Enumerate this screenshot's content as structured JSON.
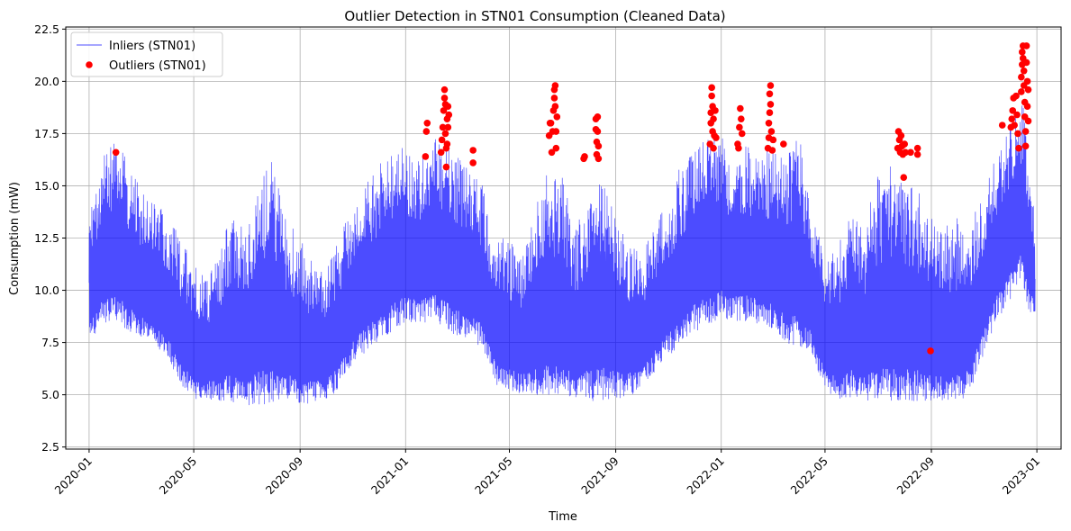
{
  "chart_data": {
    "type": "line",
    "title": "Outlier Detection in STN01 Consumption (Cleaned Data)",
    "xlabel": "Time",
    "ylabel": "Consumption (mW)",
    "xlim": [
      "2019-12-05",
      "2023-01-29"
    ],
    "ylim": [
      2.4,
      22.6
    ],
    "x_ticks": [
      "2020-01",
      "2020-05",
      "2020-09",
      "2021-01",
      "2021-05",
      "2021-09",
      "2022-01",
      "2022-05",
      "2022-09",
      "2023-01"
    ],
    "y_ticks": [
      "2.5",
      "5.0",
      "7.5",
      "10.0",
      "12.5",
      "15.0",
      "17.5",
      "20.0",
      "22.5"
    ],
    "grid": true,
    "legend_position": "top-left",
    "series": [
      {
        "name": "Inliers (STN01)",
        "kind": "line",
        "color": "#0000ff",
        "envelope_by_day": [
          [
            "2020-01-01",
            7.6,
            13.6
          ],
          [
            "2020-01-15",
            8.2,
            16.3
          ],
          [
            "2020-02-01",
            8.5,
            17.5
          ],
          [
            "2020-02-15",
            8.0,
            16.0
          ],
          [
            "2020-03-01",
            7.8,
            15.0
          ],
          [
            "2020-03-15",
            7.2,
            14.2
          ],
          [
            "2020-04-01",
            6.8,
            13.8
          ],
          [
            "2020-04-15",
            5.5,
            12.5
          ],
          [
            "2020-05-01",
            4.8,
            11.5
          ],
          [
            "2020-05-15",
            4.8,
            10.5
          ],
          [
            "2020-06-01",
            4.7,
            12.0
          ],
          [
            "2020-06-15",
            4.6,
            14.0
          ],
          [
            "2020-07-01",
            4.5,
            12.5
          ],
          [
            "2020-07-15",
            4.5,
            15.5
          ],
          [
            "2020-08-01",
            4.6,
            16.5
          ],
          [
            "2020-08-15",
            4.7,
            13.5
          ],
          [
            "2020-09-01",
            4.5,
            12.5
          ],
          [
            "2020-09-15",
            4.6,
            11.5
          ],
          [
            "2020-10-01",
            4.8,
            11.0
          ],
          [
            "2020-10-15",
            5.2,
            12.5
          ],
          [
            "2020-11-01",
            6.5,
            14.0
          ],
          [
            "2020-11-15",
            7.0,
            15.0
          ],
          [
            "2020-12-01",
            7.6,
            16.0
          ],
          [
            "2020-12-15",
            8.0,
            16.5
          ],
          [
            "2021-01-01",
            8.5,
            17.0
          ],
          [
            "2021-01-15",
            8.3,
            16.2
          ],
          [
            "2021-02-01",
            8.5,
            17.5
          ],
          [
            "2021-02-15",
            8.2,
            17.0
          ],
          [
            "2021-03-01",
            7.8,
            16.5
          ],
          [
            "2021-03-15",
            7.6,
            16.0
          ],
          [
            "2021-04-01",
            7.2,
            15.0
          ],
          [
            "2021-04-15",
            5.5,
            12.5
          ],
          [
            "2021-05-01",
            5.2,
            12.5
          ],
          [
            "2021-05-15",
            5.0,
            11.5
          ],
          [
            "2021-06-01",
            5.0,
            14.0
          ],
          [
            "2021-06-15",
            4.9,
            16.0
          ],
          [
            "2021-07-01",
            4.9,
            15.5
          ],
          [
            "2021-07-15",
            4.8,
            13.0
          ],
          [
            "2021-08-01",
            4.7,
            14.5
          ],
          [
            "2021-08-15",
            4.7,
            15.5
          ],
          [
            "2021-09-01",
            4.8,
            13.5
          ],
          [
            "2021-09-15",
            4.9,
            12.5
          ],
          [
            "2021-10-01",
            5.2,
            12.0
          ],
          [
            "2021-10-15",
            6.0,
            13.0
          ],
          [
            "2021-11-01",
            6.8,
            14.5
          ],
          [
            "2021-11-15",
            7.3,
            16.0
          ],
          [
            "2021-12-01",
            8.0,
            17.0
          ],
          [
            "2021-12-15",
            8.3,
            17.3
          ],
          [
            "2022-01-01",
            8.7,
            17.5
          ],
          [
            "2022-01-15",
            8.5,
            16.5
          ],
          [
            "2022-02-01",
            8.5,
            17.0
          ],
          [
            "2022-02-15",
            8.3,
            16.5
          ],
          [
            "2022-03-01",
            8.0,
            17.0
          ],
          [
            "2022-03-15",
            7.5,
            16.5
          ],
          [
            "2022-04-01",
            7.3,
            17.8
          ],
          [
            "2022-04-15",
            7.0,
            14.0
          ],
          [
            "2022-05-01",
            5.2,
            11.5
          ],
          [
            "2022-05-15",
            4.8,
            12.0
          ],
          [
            "2022-06-01",
            4.8,
            14.0
          ],
          [
            "2022-06-15",
            4.7,
            13.0
          ],
          [
            "2022-07-01",
            4.6,
            15.5
          ],
          [
            "2022-07-15",
            4.6,
            16.0
          ],
          [
            "2022-08-01",
            4.7,
            15.0
          ],
          [
            "2022-08-15",
            4.7,
            15.0
          ],
          [
            "2022-09-01",
            4.6,
            13.5
          ],
          [
            "2022-09-15",
            4.6,
            13.0
          ],
          [
            "2022-10-01",
            4.6,
            13.5
          ],
          [
            "2022-10-15",
            5.0,
            13.0
          ],
          [
            "2022-11-01",
            7.0,
            15.0
          ],
          [
            "2022-11-15",
            8.5,
            16.5
          ],
          [
            "2022-12-01",
            9.5,
            18.0
          ],
          [
            "2022-12-15",
            10.5,
            19.5
          ],
          [
            "2022-12-22",
            9.0,
            16.0
          ],
          [
            "2022-12-30",
            8.8,
            13.5
          ]
        ]
      },
      {
        "name": "Outliers (STN01)",
        "kind": "scatter",
        "color": "#ff0000",
        "points": [
          [
            "2020-02-01",
            16.6
          ],
          [
            "2021-01-24",
            16.4
          ],
          [
            "2021-01-25",
            17.6
          ],
          [
            "2021-01-26",
            18.0
          ],
          [
            "2021-02-11",
            16.6
          ],
          [
            "2021-02-12",
            17.2
          ],
          [
            "2021-02-13",
            17.8
          ],
          [
            "2021-02-14",
            18.6
          ],
          [
            "2021-02-15",
            19.2
          ],
          [
            "2021-02-15",
            19.6
          ],
          [
            "2021-02-16",
            18.9
          ],
          [
            "2021-02-16",
            17.5
          ],
          [
            "2021-02-17",
            16.8
          ],
          [
            "2021-02-17",
            15.9
          ],
          [
            "2021-02-18",
            18.2
          ],
          [
            "2021-02-18",
            17.0
          ],
          [
            "2021-02-19",
            18.8
          ],
          [
            "2021-02-19",
            17.8
          ],
          [
            "2021-02-20",
            18.4
          ],
          [
            "2021-03-20",
            16.7
          ],
          [
            "2021-03-20",
            16.1
          ],
          [
            "2021-06-16",
            17.4
          ],
          [
            "2021-06-17",
            18.0
          ],
          [
            "2021-06-18",
            18.0
          ],
          [
            "2021-06-19",
            16.6
          ],
          [
            "2021-06-20",
            17.6
          ],
          [
            "2021-06-21",
            18.6
          ],
          [
            "2021-06-22",
            19.2
          ],
          [
            "2021-06-22",
            19.6
          ],
          [
            "2021-06-23",
            19.8
          ],
          [
            "2021-06-23",
            18.8
          ],
          [
            "2021-06-24",
            17.6
          ],
          [
            "2021-06-24",
            16.8
          ],
          [
            "2021-06-25",
            18.3
          ],
          [
            "2021-07-26",
            16.3
          ],
          [
            "2021-07-27",
            16.4
          ],
          [
            "2021-08-09",
            18.2
          ],
          [
            "2021-08-09",
            17.7
          ],
          [
            "2021-08-10",
            17.1
          ],
          [
            "2021-08-10",
            16.5
          ],
          [
            "2021-08-11",
            18.3
          ],
          [
            "2021-08-11",
            17.6
          ],
          [
            "2021-08-12",
            16.9
          ],
          [
            "2021-08-12",
            16.3
          ],
          [
            "2021-12-19",
            17.0
          ],
          [
            "2021-12-20",
            18.0
          ],
          [
            "2021-12-20",
            18.5
          ],
          [
            "2021-12-21",
            19.3
          ],
          [
            "2021-12-21",
            19.7
          ],
          [
            "2021-12-22",
            18.8
          ],
          [
            "2021-12-22",
            17.6
          ],
          [
            "2021-12-23",
            16.8
          ],
          [
            "2021-12-23",
            18.2
          ],
          [
            "2021-12-24",
            17.4
          ],
          [
            "2021-12-25",
            18.6
          ],
          [
            "2021-12-26",
            17.3
          ],
          [
            "2022-01-20",
            17.0
          ],
          [
            "2022-01-21",
            16.8
          ],
          [
            "2022-01-22",
            17.8
          ],
          [
            "2022-01-23",
            18.7
          ],
          [
            "2022-01-24",
            18.2
          ],
          [
            "2022-01-25",
            17.5
          ],
          [
            "2022-02-24",
            16.8
          ],
          [
            "2022-02-25",
            17.3
          ],
          [
            "2022-02-25",
            18.0
          ],
          [
            "2022-02-26",
            18.5
          ],
          [
            "2022-02-26",
            19.4
          ],
          [
            "2022-02-27",
            19.8
          ],
          [
            "2022-02-27",
            18.9
          ],
          [
            "2022-02-28",
            17.6
          ],
          [
            "2022-03-01",
            16.7
          ],
          [
            "2022-03-02",
            17.2
          ],
          [
            "2022-03-14",
            17.0
          ],
          [
            "2022-07-24",
            16.8
          ],
          [
            "2022-07-25",
            17.6
          ],
          [
            "2022-07-26",
            17.2
          ],
          [
            "2022-07-27",
            16.6
          ],
          [
            "2022-07-28",
            17.4
          ],
          [
            "2022-07-29",
            16.9
          ],
          [
            "2022-07-30",
            16.5
          ],
          [
            "2022-07-31",
            15.4
          ],
          [
            "2022-08-01",
            17.0
          ],
          [
            "2022-08-02",
            16.6
          ],
          [
            "2022-08-08",
            16.6
          ],
          [
            "2022-08-16",
            16.8
          ],
          [
            "2022-08-16",
            16.5
          ],
          [
            "2022-08-31",
            7.1
          ],
          [
            "2022-11-22",
            17.9
          ],
          [
            "2022-12-02",
            17.8
          ],
          [
            "2022-12-03",
            18.2
          ],
          [
            "2022-12-04",
            18.6
          ],
          [
            "2022-12-05",
            19.2
          ],
          [
            "2022-12-06",
            17.9
          ],
          [
            "2022-12-08",
            19.3
          ],
          [
            "2022-12-09",
            18.4
          ],
          [
            "2022-12-10",
            17.5
          ],
          [
            "2022-12-11",
            16.8
          ],
          [
            "2022-12-14",
            19.5
          ],
          [
            "2022-12-14",
            20.2
          ],
          [
            "2022-12-15",
            20.8
          ],
          [
            "2022-12-15",
            21.4
          ],
          [
            "2022-12-16",
            21.7
          ],
          [
            "2022-12-16",
            21.1
          ],
          [
            "2022-12-17",
            20.5
          ],
          [
            "2022-12-17",
            19.8
          ],
          [
            "2022-12-18",
            19.0
          ],
          [
            "2022-12-18",
            18.3
          ],
          [
            "2022-12-19",
            17.6
          ],
          [
            "2022-12-19",
            16.9
          ],
          [
            "2022-12-20",
            21.7
          ],
          [
            "2022-12-20",
            20.9
          ],
          [
            "2022-12-21",
            20.0
          ],
          [
            "2022-12-21",
            18.8
          ],
          [
            "2022-12-22",
            18.1
          ],
          [
            "2022-12-22",
            19.6
          ]
        ]
      }
    ]
  }
}
